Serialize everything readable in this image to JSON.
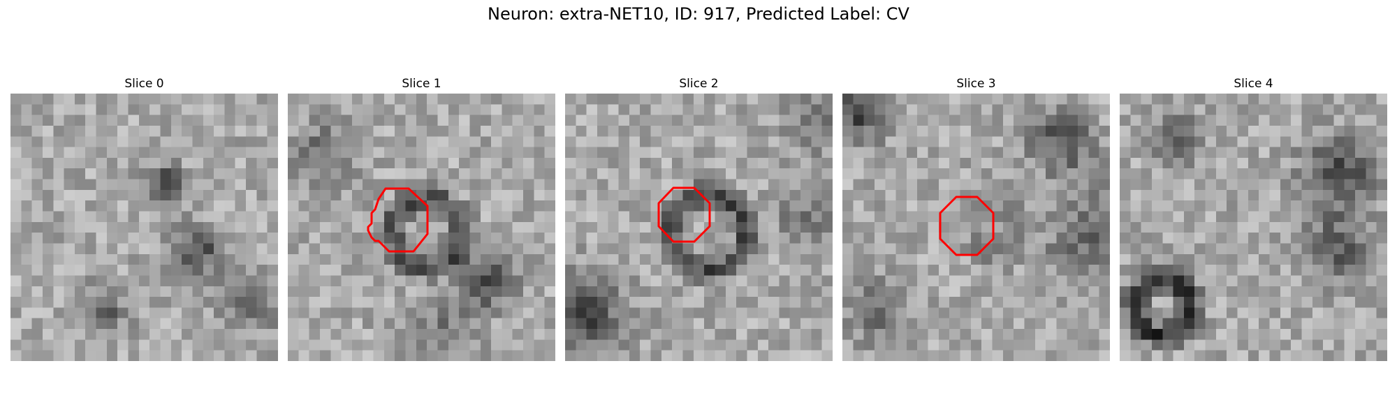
{
  "title": "Neuron: extra-NET10, ID: 917, Predicted Label: CV",
  "colors": {
    "contour": "#ff0000"
  },
  "panels": [
    {
      "label": "Slice 0",
      "contour": false
    },
    {
      "label": "Slice 1",
      "contour": true
    },
    {
      "label": "Slice 2",
      "contour": true
    },
    {
      "label": "Slice 3",
      "contour": true
    },
    {
      "label": "Slice 4",
      "contour": false
    }
  ]
}
